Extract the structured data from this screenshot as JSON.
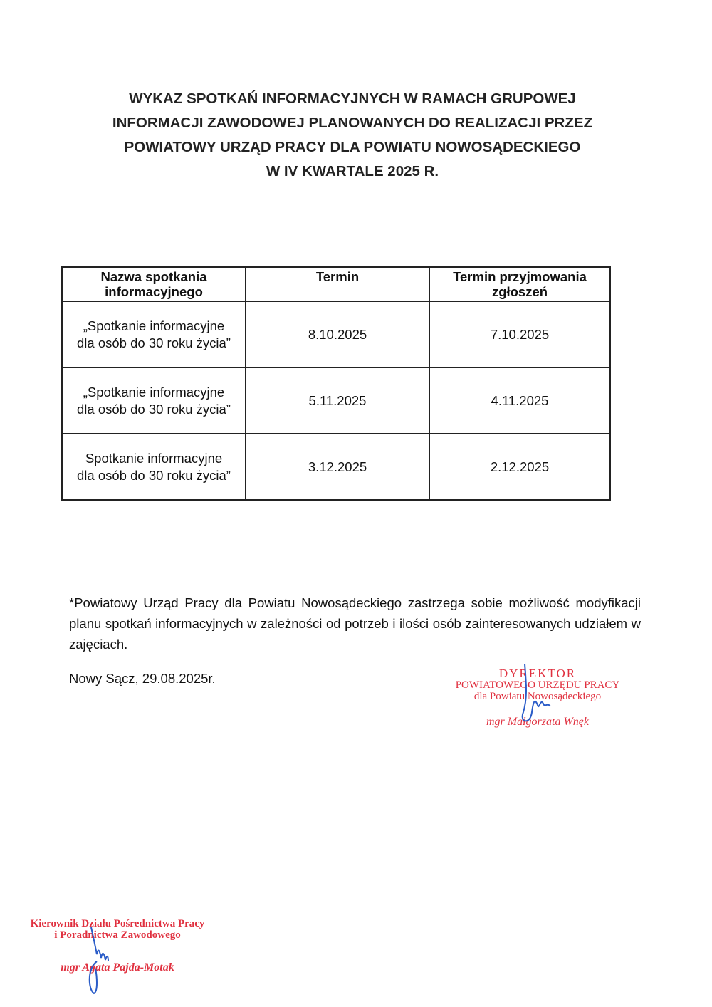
{
  "title": {
    "lines": [
      "WYKAZ SPOTKAŃ INFORMACYJNYCH W RAMACH GRUPOWEJ",
      "INFORMACJI ZAWODOWEJ PLANOWANYCH DO REALIZACJI PRZEZ",
      "POWIATOWY URZĄD PRACY DLA POWIATU NOWOSĄDECKIEGO",
      "W IV KWARTALE 2025 R."
    ]
  },
  "table": {
    "headers": [
      "Nazwa spotkania informacyjnego",
      "Termin",
      "Termin przyjmowania zgłoszeń"
    ],
    "rows": [
      {
        "name_line1": "„Spotkanie informacyjne",
        "name_line2": "dla osób do 30 roku życia”",
        "date": "8.10.2025",
        "deadline": "7.10.2025"
      },
      {
        "name_line1": "„Spotkanie informacyjne",
        "name_line2": "dla osób do 30 roku życia”",
        "date": "5.11.2025",
        "deadline": "4.11.2025"
      },
      {
        "name_line1": "Spotkanie informacyjne",
        "name_line2": "dla osób do 30 roku życia”",
        "date": "3.12.2025",
        "deadline": "2.12.2025"
      }
    ]
  },
  "footnote": "*Powiatowy Urząd Pracy dla Powiatu Nowosądeckiego zastrzega sobie możliwość modyfikacji planu spotkań informacyjnych w zależności od potrzeb i ilości osób zainteresowanych udziałem w zajęciach.",
  "place_date": "Nowy Sącz, 29.08.2025r.",
  "stamp_director": {
    "line1": "DYREKTOR",
    "line2": "POWIATOWEGO URZĘDU PRACY",
    "line3": "dla Powiatu Nowosądeckiego",
    "name": "mgr Małgorzata Wnęk",
    "color": "#e0303f"
  },
  "stamp_head": {
    "line1": "Kierownik Działu Pośrednictwa Pracy",
    "line2": "i Poradnictwa Zawodowego",
    "name": "mgr Agata Pajda-Motak",
    "color": "#e0303f"
  },
  "signature_color": "#2a5cc8"
}
